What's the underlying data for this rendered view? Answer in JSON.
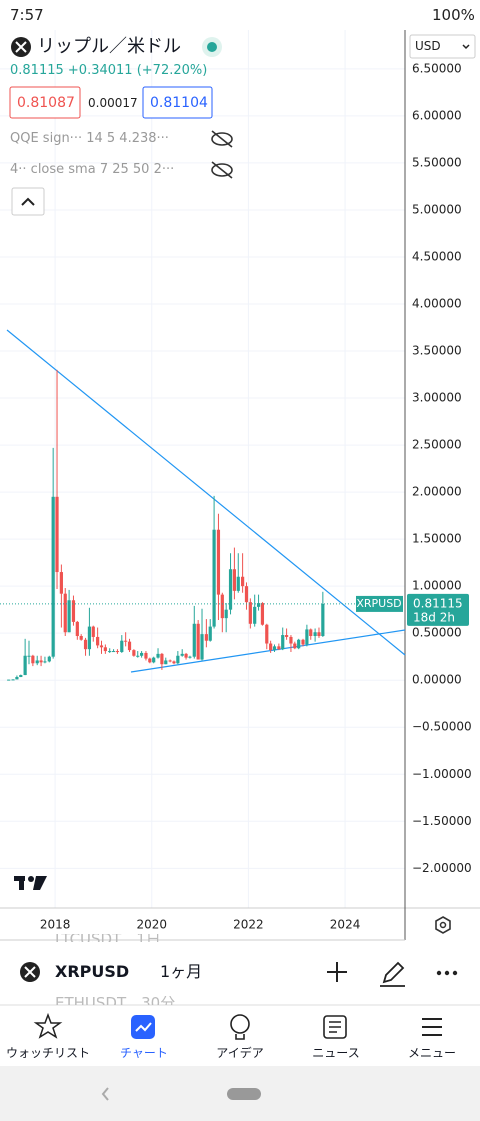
{
  "status_bar": {
    "time": "7:57",
    "battery": "100%"
  },
  "header": {
    "title": "リップル／米ドル",
    "price": "0.81115",
    "change": "+0.34011",
    "change_pct": "(+72.20%)",
    "bid": "0.81087",
    "spread": "0.00017",
    "ask": "0.81104",
    "indicators": [
      "QQE sign··· 14 5 4.238···",
      "4·· close sma 7 25 50 2···"
    ],
    "currency": "USD"
  },
  "chart_data": {
    "type": "candlestick",
    "symbol_label": "XRPUSD",
    "last_price": 0.81115,
    "countdown": "18d 2h",
    "up_color": "#26a69a",
    "down_color": "#ef5350",
    "grid": true,
    "x": [
      2017.04,
      2017.13,
      2017.21,
      2017.29,
      2017.38,
      2017.46,
      2017.54,
      2017.63,
      2017.71,
      2017.79,
      2017.88,
      2017.96,
      2018.04,
      2018.13,
      2018.21,
      2018.29,
      2018.38,
      2018.46,
      2018.54,
      2018.63,
      2018.71,
      2018.79,
      2018.88,
      2018.96,
      2019.04,
      2019.13,
      2019.21,
      2019.29,
      2019.38,
      2019.46,
      2019.54,
      2019.63,
      2019.71,
      2019.79,
      2019.88,
      2019.96,
      2020.04,
      2020.13,
      2020.21,
      2020.29,
      2020.38,
      2020.46,
      2020.54,
      2020.63,
      2020.71,
      2020.79,
      2020.88,
      2020.96,
      2021.04,
      2021.13,
      2021.21,
      2021.29,
      2021.38,
      2021.46,
      2021.54,
      2021.63,
      2021.71,
      2021.79,
      2021.88,
      2021.96,
      2022.04,
      2022.13,
      2022.21,
      2022.29,
      2022.38,
      2022.46,
      2022.54,
      2022.63,
      2022.71,
      2022.79,
      2022.88,
      2022.96,
      2023.04,
      2023.13,
      2023.21,
      2023.29,
      2023.38,
      2023.46,
      2023.54
    ],
    "open": [
      0.0063,
      0.0065,
      0.0085,
      0.034,
      0.055,
      0.26,
      0.26,
      0.18,
      0.21,
      0.19,
      0.2,
      0.25,
      1.95,
      1.15,
      0.92,
      0.51,
      0.85,
      0.62,
      0.47,
      0.43,
      0.33,
      0.57,
      0.46,
      0.37,
      0.35,
      0.31,
      0.31,
      0.31,
      0.3,
      0.42,
      0.41,
      0.32,
      0.26,
      0.26,
      0.29,
      0.23,
      0.19,
      0.24,
      0.28,
      0.17,
      0.21,
      0.2,
      0.18,
      0.26,
      0.28,
      0.24,
      0.25,
      0.6,
      0.22,
      0.49,
      0.42,
      0.57,
      1.6,
      0.91,
      0.66,
      0.75,
      1.18,
      0.95,
      1.1,
      1.0,
      0.83,
      0.6,
      0.78,
      0.82,
      0.59,
      0.39,
      0.32,
      0.36,
      0.33,
      0.48,
      0.46,
      0.39,
      0.34,
      0.43,
      0.38,
      0.54,
      0.47,
      0.51,
      0.47
    ],
    "high": [
      0.0075,
      0.01,
      0.05,
      0.06,
      0.44,
      0.42,
      0.27,
      0.26,
      0.26,
      0.25,
      0.26,
      2.47,
      3.3,
      1.23,
      0.98,
      0.96,
      0.9,
      0.63,
      0.49,
      0.45,
      0.77,
      0.58,
      0.56,
      0.42,
      0.38,
      0.34,
      0.33,
      0.33,
      0.48,
      0.51,
      0.44,
      0.33,
      0.31,
      0.31,
      0.31,
      0.24,
      0.25,
      0.34,
      0.29,
      0.24,
      0.22,
      0.21,
      0.31,
      0.33,
      0.29,
      0.26,
      0.79,
      0.64,
      0.76,
      0.65,
      0.65,
      1.96,
      1.77,
      0.93,
      0.82,
      1.35,
      1.41,
      1.35,
      1.35,
      1.04,
      0.87,
      0.91,
      0.91,
      0.83,
      0.6,
      0.42,
      0.38,
      0.39,
      0.56,
      0.55,
      0.48,
      0.41,
      0.44,
      0.44,
      0.59,
      0.55,
      0.55,
      0.56,
      0.94
    ],
    "low": [
      0.0055,
      0.0063,
      0.0084,
      0.033,
      0.054,
      0.17,
      0.15,
      0.16,
      0.15,
      0.18,
      0.19,
      0.23,
      0.97,
      0.56,
      0.47,
      0.51,
      0.58,
      0.43,
      0.42,
      0.26,
      0.26,
      0.41,
      0.34,
      0.28,
      0.28,
      0.29,
      0.3,
      0.28,
      0.29,
      0.36,
      0.3,
      0.25,
      0.24,
      0.24,
      0.21,
      0.18,
      0.18,
      0.23,
      0.11,
      0.17,
      0.19,
      0.17,
      0.17,
      0.25,
      0.22,
      0.23,
      0.23,
      0.22,
      0.21,
      0.35,
      0.41,
      0.55,
      0.64,
      0.51,
      0.51,
      0.7,
      0.86,
      0.93,
      0.93,
      0.75,
      0.55,
      0.57,
      0.74,
      0.58,
      0.33,
      0.29,
      0.3,
      0.32,
      0.32,
      0.43,
      0.3,
      0.33,
      0.33,
      0.36,
      0.36,
      0.43,
      0.41,
      0.45,
      0.46
    ],
    "close": [
      0.0065,
      0.0085,
      0.034,
      0.055,
      0.26,
      0.26,
      0.18,
      0.21,
      0.19,
      0.2,
      0.25,
      1.95,
      1.15,
      0.92,
      0.51,
      0.85,
      0.62,
      0.47,
      0.43,
      0.33,
      0.57,
      0.46,
      0.37,
      0.35,
      0.31,
      0.31,
      0.31,
      0.3,
      0.42,
      0.41,
      0.32,
      0.26,
      0.26,
      0.29,
      0.23,
      0.19,
      0.24,
      0.28,
      0.17,
      0.21,
      0.2,
      0.18,
      0.26,
      0.28,
      0.24,
      0.25,
      0.6,
      0.22,
      0.49,
      0.42,
      0.57,
      1.6,
      0.91,
      0.66,
      0.75,
      1.18,
      0.95,
      1.1,
      1.0,
      0.83,
      0.6,
      0.78,
      0.82,
      0.59,
      0.39,
      0.32,
      0.36,
      0.33,
      0.48,
      0.46,
      0.39,
      0.34,
      0.43,
      0.38,
      0.54,
      0.47,
      0.51,
      0.47,
      0.81115
    ],
    "xlim": [
      2016.86,
      2025.24
    ],
    "xticks": [
      2018,
      2020,
      2022,
      2024
    ],
    "ylim": [
      -2.39,
      6.86
    ],
    "yticks": [
      {
        "value": 6.5,
        "label": "6.50000"
      },
      {
        "value": 6,
        "label": "6.00000"
      },
      {
        "value": 5.5,
        "label": "5.50000"
      },
      {
        "value": 5,
        "label": "5.00000"
      },
      {
        "value": 4.5,
        "label": "4.50000"
      },
      {
        "value": 4,
        "label": "4.00000"
      },
      {
        "value": 3.5,
        "label": "3.50000"
      },
      {
        "value": 3,
        "label": "3.00000"
      },
      {
        "value": 2.5,
        "label": "2.50000"
      },
      {
        "value": 2,
        "label": "2.00000"
      },
      {
        "value": 1.5,
        "label": "1.50000"
      },
      {
        "value": 1,
        "label": "1.00000"
      },
      {
        "value": 0.5,
        "label": "0.50000"
      },
      {
        "value": 0,
        "label": "0.00000"
      },
      {
        "value": -0.5,
        "label": "−0.50000"
      },
      {
        "value": -1,
        "label": "−1.00000"
      },
      {
        "value": -1.5,
        "label": "−1.50000"
      },
      {
        "value": -2,
        "label": "−2.00000"
      }
    ]
  },
  "symbol_bar": {
    "ghost_rows": [
      "LTCUSDT　1日",
      "ETHUSDT　30分"
    ],
    "symbol": "XRPUSD",
    "interval": "1ヶ月"
  },
  "nav": [
    "ウォッチリスト",
    "チャート",
    "アイデア",
    "ニュース",
    "メニュー"
  ]
}
